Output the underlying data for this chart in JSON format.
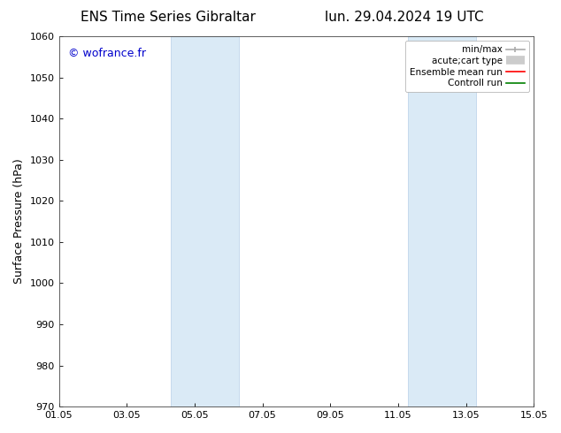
{
  "title_left": "ENS Time Series Gibraltar",
  "title_right": "lun. 29.04.2024 19 UTC",
  "ylabel": "Surface Pressure (hPa)",
  "ylim": [
    970,
    1060
  ],
  "yticks": [
    970,
    980,
    990,
    1000,
    1010,
    1020,
    1030,
    1040,
    1050,
    1060
  ],
  "xlim_start": 0,
  "xlim_end": 14,
  "xtick_positions": [
    0,
    2,
    4,
    6,
    8,
    10,
    12,
    14
  ],
  "xtick_labels": [
    "01.05",
    "03.05",
    "05.05",
    "07.05",
    "09.05",
    "11.05",
    "13.05",
    "15.05"
  ],
  "shaded_bands": [
    {
      "x_start": 3.3,
      "x_end": 5.3
    },
    {
      "x_start": 10.3,
      "x_end": 12.3
    }
  ],
  "shaded_color": "#daeaf6",
  "shaded_edge_color": "#b8d0e8",
  "watermark_text": "© wofrance.fr",
  "watermark_color": "#0000cc",
  "background_color": "#ffffff",
  "legend_items": [
    {
      "label": "min/max",
      "color": "#aaaaaa",
      "lw": 1.5
    },
    {
      "label": "acute;cart type",
      "color": "#cccccc",
      "lw": 8
    },
    {
      "label": "Ensemble mean run",
      "color": "#ff0000",
      "lw": 1.5
    },
    {
      "label": "Controll run",
      "color": "#008000",
      "lw": 1.5
    }
  ],
  "font_family": "DejaVu Sans",
  "title_fontsize": 11,
  "label_fontsize": 9,
  "tick_fontsize": 8,
  "legend_fontsize": 7.5,
  "watermark_fontsize": 9
}
